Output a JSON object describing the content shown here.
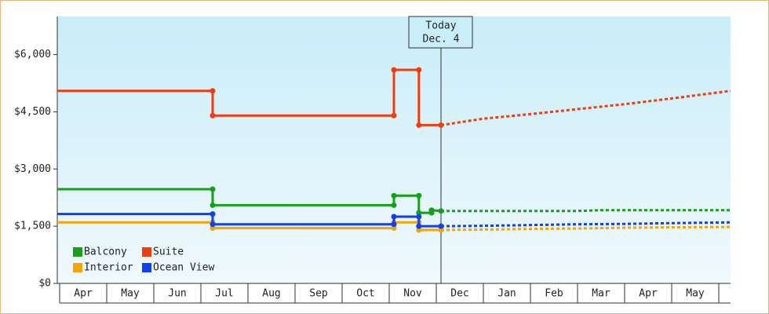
{
  "chart_data": {
    "type": "line",
    "xlim": [
      -0.05,
      14.25
    ],
    "xticks": [
      {
        "value": 0.5,
        "label": "Apr"
      },
      {
        "value": 1.5,
        "label": "May"
      },
      {
        "value": 2.5,
        "label": "Jun"
      },
      {
        "value": 3.5,
        "label": "Jul"
      },
      {
        "value": 4.5,
        "label": "Aug"
      },
      {
        "value": 5.5,
        "label": "Sep"
      },
      {
        "value": 6.5,
        "label": "Oct"
      },
      {
        "value": 7.5,
        "label": "Nov"
      },
      {
        "value": 8.5,
        "label": "Dec"
      },
      {
        "value": 9.5,
        "label": "Jan"
      },
      {
        "value": 10.5,
        "label": "Feb"
      },
      {
        "value": 11.5,
        "label": "Mar"
      },
      {
        "value": 12.5,
        "label": "Apr"
      },
      {
        "value": 13.5,
        "label": "May"
      }
    ],
    "ylim": [
      0,
      7000
    ],
    "yticks": [
      {
        "value": 0,
        "label": "$0"
      },
      {
        "value": 1500,
        "label": "$1,500"
      },
      {
        "value": 3000,
        "label": "$3,000"
      },
      {
        "value": 4500,
        "label": "$4,500"
      },
      {
        "value": 6000,
        "label": "$6,000"
      }
    ],
    "today": {
      "x": 8.1,
      "label": [
        "Today",
        "Dec. 4"
      ]
    },
    "series": [
      {
        "name": "Balcony",
        "color": "#17a017",
        "x": [
          -0.05,
          3.25,
          3.25,
          7.1,
          7.1,
          7.63,
          7.63,
          7.9,
          7.9,
          8.1
        ],
        "values": [
          2470,
          2470,
          2050,
          2050,
          2300,
          2300,
          1850,
          1850,
          1920,
          1900
        ],
        "forecast_x": [
          8.1,
          9,
          10,
          11,
          11.5,
          12,
          13,
          14.25
        ],
        "forecast_values": [
          1900,
          1900,
          1900,
          1900,
          1920,
          1920,
          1920,
          1920
        ]
      },
      {
        "name": "Suite",
        "color": "#f23c0f",
        "x": [
          -0.05,
          3.25,
          3.25,
          7.1,
          7.1,
          7.63,
          7.63,
          8.1
        ],
        "values": [
          5050,
          5050,
          4400,
          4400,
          5600,
          5600,
          4150,
          4150
        ],
        "forecast_x": [
          8.1,
          9,
          10,
          11,
          12,
          13,
          14.25
        ],
        "forecast_values": [
          4150,
          4320,
          4440,
          4570,
          4700,
          4850,
          5050
        ]
      },
      {
        "name": "Interior",
        "color": "#f7a300",
        "x": [
          -0.05,
          3.25,
          3.25,
          7.1,
          7.1,
          7.63,
          7.63,
          8.1
        ],
        "values": [
          1600,
          1600,
          1450,
          1450,
          1600,
          1600,
          1400,
          1400
        ],
        "forecast_x": [
          8.1,
          9,
          10,
          11,
          12,
          13,
          14.25
        ],
        "forecast_values": [
          1400,
          1410,
          1430,
          1440,
          1460,
          1470,
          1480
        ]
      },
      {
        "name": "Ocean View",
        "color": "#1040f0",
        "x": [
          -0.05,
          3.25,
          3.25,
          7.1,
          7.1,
          7.63,
          7.63,
          8.1
        ],
        "values": [
          1820,
          1820,
          1550,
          1550,
          1750,
          1750,
          1500,
          1500
        ],
        "forecast_x": [
          8.1,
          9,
          10,
          11,
          12,
          13,
          14.25
        ],
        "forecast_values": [
          1500,
          1510,
          1530,
          1550,
          1560,
          1580,
          1600
        ]
      }
    ]
  }
}
